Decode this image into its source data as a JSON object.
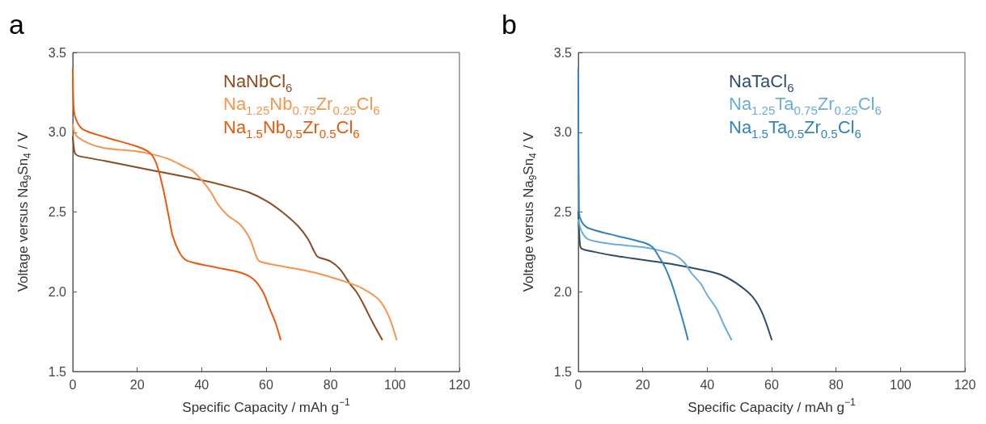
{
  "chart_data": [
    {
      "type": "line",
      "title": "a",
      "xlabel": "Specific Capacity / mAh g$^{−1}$",
      "ylabel": "Voltage versus Na$_{9}$Sn$_{4}$ / V",
      "xlim": [
        0,
        120
      ],
      "xticks": [
        0,
        20,
        40,
        60,
        80,
        100,
        120
      ],
      "ylim": [
        1.5,
        3.5
      ],
      "yticks": [
        {
          "value": 1.5,
          "label": "1.5"
        },
        {
          "value": 2,
          "label": "2.0"
        },
        {
          "value": 2.5,
          "label": "2.5"
        },
        {
          "value": 3,
          "label": "3.0"
        },
        {
          "value": 3.5,
          "label": "3.5"
        }
      ],
      "grid": false,
      "legend": "top right",
      "marker": "none",
      "line_style": "solid",
      "series": [
        {
          "name": "NaNbCl$_{6}$",
          "color": "#8b4a22",
          "x": [
            0,
            0.5,
            1,
            2,
            10,
            20,
            30,
            40,
            50,
            55,
            60,
            65,
            70,
            73,
            75,
            76,
            80,
            83,
            86,
            88,
            90,
            93,
            96
          ],
          "values": [
            2.97,
            2.88,
            2.86,
            2.85,
            2.82,
            2.78,
            2.74,
            2.7,
            2.65,
            2.62,
            2.57,
            2.5,
            2.41,
            2.33,
            2.25,
            2.22,
            2.19,
            2.14,
            2.05,
            2,
            1.93,
            1.81,
            1.7
          ]
        },
        {
          "name": "Na$_{1.25}$Nb$_{0.75}$Zr$_{0.25}$Cl$_{6}$",
          "color": "#f7944d",
          "x": [
            0,
            1,
            5,
            10,
            20,
            25,
            30,
            35,
            37,
            40,
            43,
            45,
            48,
            52,
            55,
            57,
            58,
            65,
            75,
            85,
            90,
            95,
            98,
            100.5
          ],
          "values": [
            3.05,
            2.98,
            2.93,
            2.9,
            2.88,
            2.86,
            2.83,
            2.78,
            2.76,
            2.7,
            2.62,
            2.55,
            2.48,
            2.42,
            2.33,
            2.22,
            2.19,
            2.16,
            2.12,
            2.06,
            2.02,
            1.95,
            1.85,
            1.7
          ]
        },
        {
          "name": "Na$_{1.5}$Nb$_{0.5}$Zr$_{0.5}$Cl$_{6}$",
          "color": "#e8590c",
          "x": [
            0,
            0.3,
            1,
            3,
            10,
            20,
            24,
            26,
            28,
            30,
            31,
            33,
            35,
            38,
            45,
            52,
            56,
            59,
            61,
            63,
            64.5
          ],
          "values": [
            3.4,
            3.15,
            3.08,
            3.02,
            2.97,
            2.91,
            2.87,
            2.8,
            2.65,
            2.45,
            2.35,
            2.25,
            2.2,
            2.18,
            2.15,
            2.12,
            2.08,
            2,
            1.9,
            1.8,
            1.7
          ]
        }
      ]
    },
    {
      "type": "line",
      "title": "b",
      "xlabel": "Specific Capacity / mAh g$^{−1}$",
      "ylabel": "Voltage versus Na$_{9}$Sn$_{4}$ / V",
      "xlim": [
        0,
        120
      ],
      "xticks": [
        0,
        20,
        40,
        60,
        80,
        100,
        120
      ],
      "ylim": [
        1.5,
        3.5
      ],
      "yticks": [
        {
          "value": 1.5,
          "label": "1.5"
        },
        {
          "value": 2,
          "label": "2.0"
        },
        {
          "value": 2.5,
          "label": "2.5"
        },
        {
          "value": 3,
          "label": "3.0"
        },
        {
          "value": 3.5,
          "label": "3.5"
        }
      ],
      "grid": false,
      "legend": "top right",
      "marker": "none",
      "line_style": "solid",
      "series": [
        {
          "name": "NaTaCl$_{6}$",
          "color": "#2d4e6b",
          "x": [
            0,
            0.5,
            1,
            5,
            10,
            20,
            30,
            40,
            45,
            50,
            54,
            57,
            60
          ],
          "values": [
            2.5,
            2.3,
            2.27,
            2.25,
            2.23,
            2.2,
            2.17,
            2.13,
            2.1,
            2.04,
            1.97,
            1.87,
            1.7
          ]
        },
        {
          "name": "Na$_{1.25}$Ta$_{0.75}$Zr$_{0.25}$Cl$_{6}$",
          "color": "#6aaed6",
          "x": [
            0,
            1,
            3,
            10,
            20,
            25,
            30,
            33,
            35,
            38,
            40,
            43,
            45,
            47.5
          ],
          "values": [
            2.45,
            2.38,
            2.33,
            2.3,
            2.28,
            2.26,
            2.23,
            2.18,
            2.12,
            2.05,
            1.98,
            1.89,
            1.8,
            1.7
          ]
        },
        {
          "name": "Na$_{1.5}$Ta$_{0.5}$Zr$_{0.5}$Cl$_{6}$",
          "color": "#3282bd",
          "x": [
            0,
            0.2,
            1,
            3,
            10,
            20,
            23,
            25,
            27,
            29,
            31,
            33,
            34
          ],
          "values": [
            3.4,
            2.5,
            2.44,
            2.4,
            2.36,
            2.31,
            2.28,
            2.22,
            2.15,
            2.05,
            1.92,
            1.78,
            1.7
          ]
        }
      ]
    }
  ]
}
